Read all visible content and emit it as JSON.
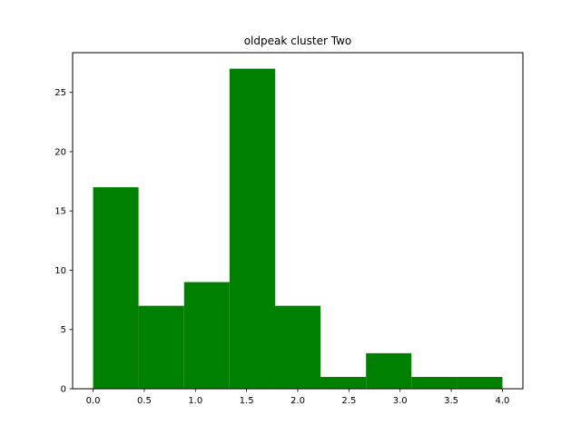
{
  "chart_data": {
    "type": "bar",
    "subtype": "histogram",
    "title": "oldpeak cluster Two",
    "xlabel": "",
    "ylabel": "",
    "bin_edges": [
      0.0,
      0.444,
      0.889,
      1.333,
      1.778,
      2.222,
      2.667,
      3.111,
      3.556,
      4.0
    ],
    "values": [
      17,
      7,
      9,
      27,
      7,
      1,
      3,
      1,
      1
    ],
    "xlim": [
      -0.2,
      4.2
    ],
    "ylim": [
      0,
      28.35
    ],
    "xticks": [
      0.0,
      0.5,
      1.0,
      1.5,
      2.0,
      2.5,
      3.0,
      3.5,
      4.0
    ],
    "xtick_labels": [
      "0.0",
      "0.5",
      "1.0",
      "1.5",
      "2.0",
      "2.5",
      "3.0",
      "3.5",
      "4.0"
    ],
    "yticks": [
      0,
      5,
      10,
      15,
      20,
      25
    ],
    "ytick_labels": [
      "0",
      "5",
      "10",
      "15",
      "20",
      "25"
    ],
    "grid": false,
    "bar_color": "#008000",
    "axis_color": "#000000",
    "background_color": "#ffffff"
  }
}
